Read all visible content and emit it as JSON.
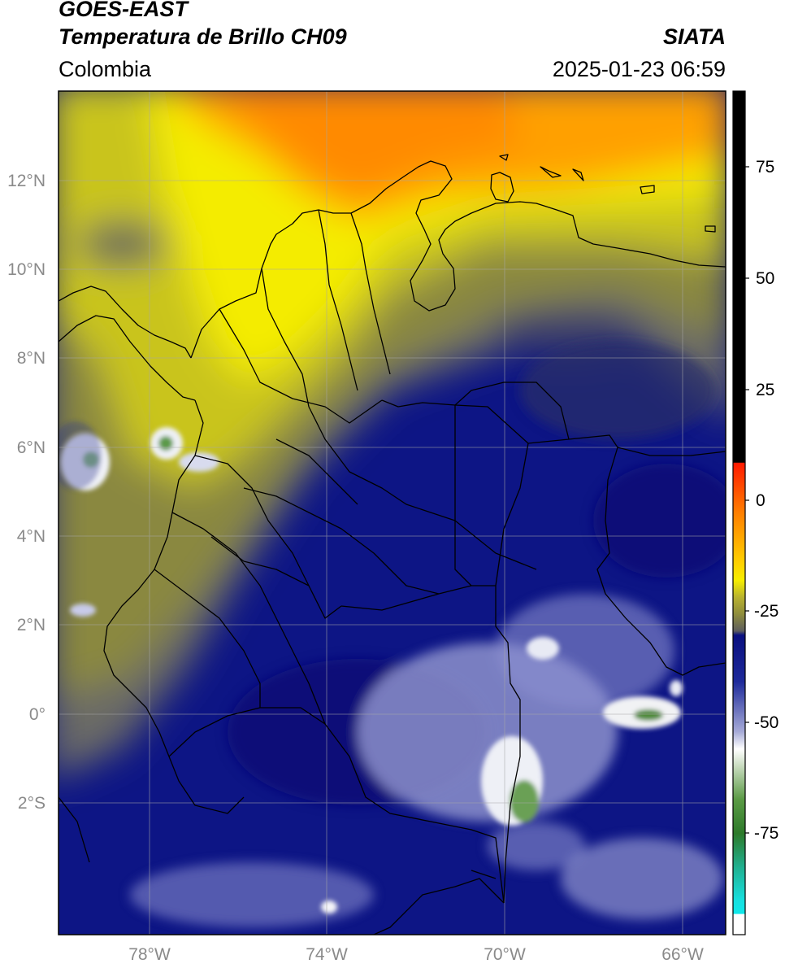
{
  "header": {
    "satellite": "GOES-EAST",
    "product": "Temperatura de Brillo CH09",
    "region": "Colombia",
    "source": "SIATA",
    "datetime": "2025-01-23 06:59"
  },
  "map": {
    "lon_range": [
      -80,
      -65
    ],
    "lat_range": [
      -5,
      14
    ],
    "lat_ticks": [
      "12°N",
      "10°N",
      "8°N",
      "6°N",
      "4°N",
      "2°N",
      "0°",
      "2°S"
    ],
    "lon_ticks": [
      "78°W",
      "74°W",
      "70°W",
      "66°W"
    ],
    "gridlines": true
  },
  "colorbar": {
    "labels": [
      "75",
      "50",
      "25",
      "0",
      "-25",
      "-50",
      "-75"
    ],
    "colors": {
      "hot": "#000000",
      "red": "#ff2a00",
      "orange": "#ff9a00",
      "yellow": "#f6ee00",
      "olive": "#8f8d3c",
      "gray": "#6e6e6a",
      "navy": "#0a1080",
      "white": "#ffffff",
      "green": "#3d8a2a",
      "cyan": "#17e0e0"
    }
  }
}
